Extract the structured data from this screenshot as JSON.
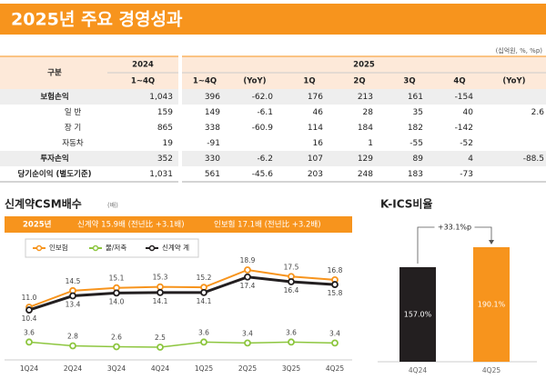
{
  "header": {
    "title": "2025년 주요 경영성과"
  },
  "table": {
    "unit": "(십억원, %, %p)",
    "head": [
      "구분",
      "2024",
      "1~4Q",
      "2025",
      "1~4Q",
      "(YoY)",
      "1Q",
      "2Q",
      "3Q",
      "4Q",
      "(YoY)"
    ],
    "rows": [
      [
        "보험손익",
        "1,043",
        "396",
        "-62.0",
        "176",
        "213",
        "161",
        "-154",
        null
      ],
      [
        "일 반",
        "159",
        "149",
        "-6.1",
        "46",
        "28",
        "35",
        "40",
        "2.6"
      ],
      [
        "장 기",
        "865",
        "338",
        "-60.9",
        "114",
        "184",
        "182",
        "-142",
        null
      ],
      [
        "자동차",
        "19",
        "-91",
        null,
        "16",
        "1",
        "-55",
        "-52",
        null
      ],
      [
        "투자손익",
        "352",
        "330",
        "-6.2",
        "107",
        "129",
        "89",
        "4",
        "-88.5"
      ],
      [
        "당기순이익 (별도기준)",
        "1,031",
        "561",
        "-45.6",
        "203",
        "248",
        "183",
        "-73",
        null
      ]
    ]
  },
  "chart_data": [
    {
      "type": "line",
      "title": "신계약CSM배수",
      "unit": "(배)",
      "banner": [
        "2025년",
        "신계약 15.9배 (전년比 +3.1배)",
        "인보험 17.1배 (전년比 +3.2배)"
      ],
      "categories": [
        "1Q24",
        "2Q24",
        "3Q24",
        "4Q24",
        "1Q25",
        "2Q25",
        "3Q25",
        "4Q25"
      ],
      "series": [
        {
          "name": "인보험",
          "color": "#f7941d",
          "values": [
            11.0,
            14.5,
            15.1,
            15.3,
            15.2,
            18.9,
            17.5,
            16.8
          ],
          "value_labels": [
            "11.0",
            "14.5",
            "15.1",
            "15.3",
            "15.2",
            "18.9",
            "17.5",
            "16.8"
          ]
        },
        {
          "name": "물/저축",
          "color": "#8dc63f",
          "values": [
            3.6,
            2.8,
            2.6,
            2.5,
            3.6,
            3.4,
            3.6,
            3.4
          ],
          "value_labels": [
            "3.6",
            "2.8",
            "2.6",
            "2.5",
            "3.6",
            "3.4",
            "3.6",
            "3.4"
          ]
        },
        {
          "name": "신계약 계",
          "color": "#231f20",
          "values": [
            10.4,
            13.4,
            14.0,
            14.1,
            14.1,
            17.4,
            16.4,
            15.8
          ],
          "value_labels": [
            "10.4",
            "13.4",
            "14.0",
            "14.1",
            "14.1",
            "17.4",
            "16.4",
            "15.8"
          ]
        }
      ]
    },
    {
      "type": "bar",
      "title": "K-ICS비율",
      "categories": [
        "4Q24",
        "4Q25"
      ],
      "values": [
        157.0,
        190.1
      ],
      "value_labels": [
        "157.0%",
        "190.1%"
      ],
      "colors": [
        "#231f20",
        "#f7941d"
      ],
      "annotation": "+33.1%p"
    }
  ]
}
